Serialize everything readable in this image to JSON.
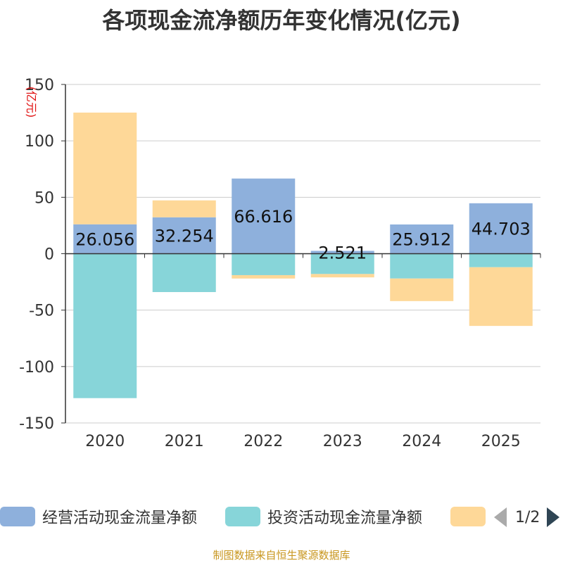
{
  "title": "各项现金流净额历年变化情况(亿元)",
  "source": "制图数据来自恒生聚源数据库",
  "pager": {
    "text": "1/2"
  },
  "colors": {
    "operating": "#8eb0dc",
    "investing": "#87d5d9",
    "financing": "#fed898",
    "axis": "#333333",
    "grid": "#cccccc",
    "unit": "#e01010"
  },
  "chart_data": {
    "type": "bar",
    "stacked": true,
    "title": "各项现金流净额历年变化情况(亿元)",
    "ylabel": "(亿元)",
    "ylim": [
      -150,
      150
    ],
    "yticks": [
      150,
      100,
      50,
      0,
      -50,
      -100,
      -150
    ],
    "categories": [
      "2020",
      "2021",
      "2022",
      "2023",
      "2024",
      "2025"
    ],
    "series": [
      {
        "name": "经营活动现金流量净额",
        "values": [
          26.056,
          32.254,
          66.616,
          2.521,
          25.912,
          44.703
        ],
        "labels": [
          "26.056",
          "32.254",
          "66.616",
          "2.521",
          "25.912",
          "44.703"
        ]
      },
      {
        "name": "投资活动现金流量净额",
        "values": [
          -128,
          -34,
          -19,
          -18,
          -22,
          -12
        ]
      },
      {
        "name": "",
        "values": [
          99,
          15,
          -3,
          -3,
          -20,
          -52
        ]
      }
    ],
    "legend": "bottom",
    "grid": true
  }
}
